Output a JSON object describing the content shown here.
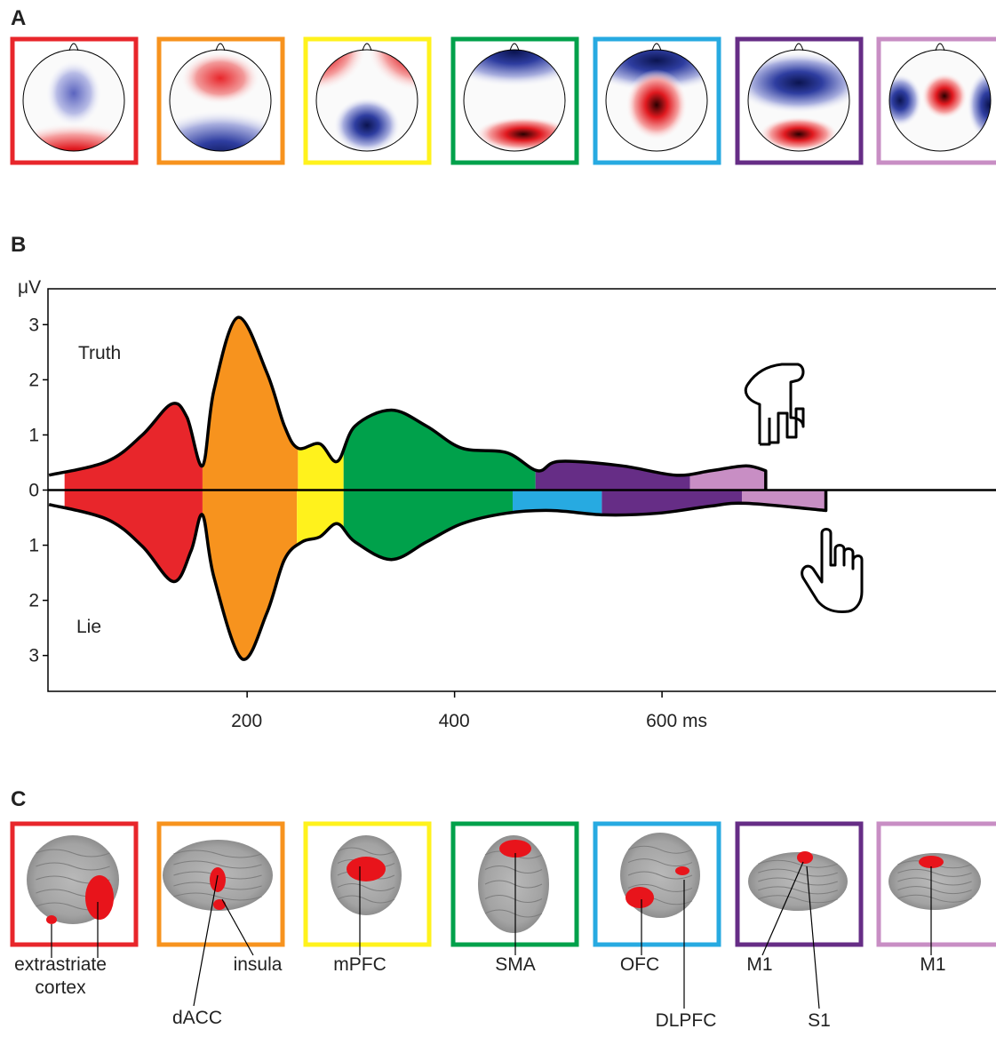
{
  "panel_a": {
    "label": "A"
  },
  "chart_data": {
    "type": "envelope",
    "label": "B",
    "y_label": "μV",
    "xlim": [
      8,
      922
    ],
    "ylim": [
      -3.65,
      3.65
    ],
    "xticks": [
      200,
      400,
      {
        "value": 600,
        "label": "600 ms"
      }
    ],
    "yticks": [
      3,
      2,
      1,
      0,
      {
        "value": -1,
        "label": "1"
      },
      {
        "value": -2,
        "label": "2"
      },
      {
        "value": -3,
        "label": "3"
      }
    ],
    "series": [
      {
        "name": "Truth",
        "x": [
          9,
          65,
          99,
          127,
          142,
          157,
          168,
          191,
          219,
          236,
          249,
          270,
          287,
          304,
          339,
          373,
          407,
          450,
          480,
          501,
          561,
          613,
          647,
          681,
          700
        ],
        "values": [
          0.27,
          0.52,
          1.0,
          1.56,
          1.32,
          0.44,
          1.81,
          3.13,
          2.13,
          1.16,
          0.76,
          0.84,
          0.52,
          1.16,
          1.45,
          1.16,
          0.76,
          0.68,
          0.35,
          0.52,
          0.44,
          0.27,
          0.35,
          0.44,
          0.35
        ],
        "segments": [
          {
            "start": 24,
            "end": 157,
            "color": "#e8262b"
          },
          {
            "start": 157,
            "end": 249,
            "color": "#f7931e"
          },
          {
            "start": 249,
            "end": 293,
            "color": "#fff21c"
          },
          {
            "start": 293,
            "end": 478,
            "color": "#00a14b"
          },
          {
            "start": 478,
            "end": 627,
            "color": "#662d86"
          },
          {
            "start": 627,
            "end": 700,
            "color": "#c88ec4"
          }
        ]
      },
      {
        "name": "Lie",
        "x": [
          9,
          65,
          99,
          129,
          146,
          157,
          168,
          195,
          219,
          236,
          253,
          270,
          287,
          304,
          339,
          373,
          407,
          450,
          493,
          544,
          596,
          647,
          681,
          758
        ],
        "values": [
          -0.26,
          -0.53,
          -1.02,
          -1.66,
          -1.1,
          -0.45,
          -1.58,
          -3.06,
          -2.23,
          -1.26,
          -0.94,
          -0.85,
          -0.61,
          -0.94,
          -1.26,
          -0.94,
          -0.61,
          -0.42,
          -0.37,
          -0.45,
          -0.42,
          -0.29,
          -0.24,
          -0.37
        ],
        "segments": [
          {
            "start": 24,
            "end": 157,
            "color": "#e8262b"
          },
          {
            "start": 157,
            "end": 248,
            "color": "#f7931e"
          },
          {
            "start": 248,
            "end": 293,
            "color": "#fff21c"
          },
          {
            "start": 293,
            "end": 456,
            "color": "#00a14b"
          },
          {
            "start": 456,
            "end": 542,
            "color": "#27aae1"
          },
          {
            "start": 542,
            "end": 677,
            "color": "#662d86"
          },
          {
            "start": 677,
            "end": 758,
            "color": "#c88ec4"
          }
        ]
      }
    ]
  },
  "panel_c": {
    "label": "C",
    "panels": [
      {
        "color": "#e8262b",
        "labels": [
          {
            "lines": [
              "extrastriate",
              "cortex"
            ]
          }
        ]
      },
      {
        "color": "#f7931e",
        "labels": [
          {
            "lines": [
              "dACC"
            ]
          },
          {
            "lines": [
              "insula"
            ]
          }
        ]
      },
      {
        "color": "#fff21c",
        "labels": [
          {
            "lines": [
              "mPFC"
            ]
          }
        ]
      },
      {
        "color": "#00a14b",
        "labels": [
          {
            "lines": [
              "SMA"
            ]
          }
        ]
      },
      {
        "color": "#27aae1",
        "labels": [
          {
            "lines": [
              "OFC"
            ]
          },
          {
            "lines": [
              "DLPFC"
            ]
          }
        ]
      },
      {
        "color": "#662d86",
        "labels": [
          {
            "lines": [
              "M1"
            ]
          },
          {
            "lines": [
              "S1"
            ]
          }
        ]
      },
      {
        "color": "#c88ec4",
        "labels": [
          {
            "lines": [
              "M1"
            ]
          }
        ]
      }
    ]
  }
}
